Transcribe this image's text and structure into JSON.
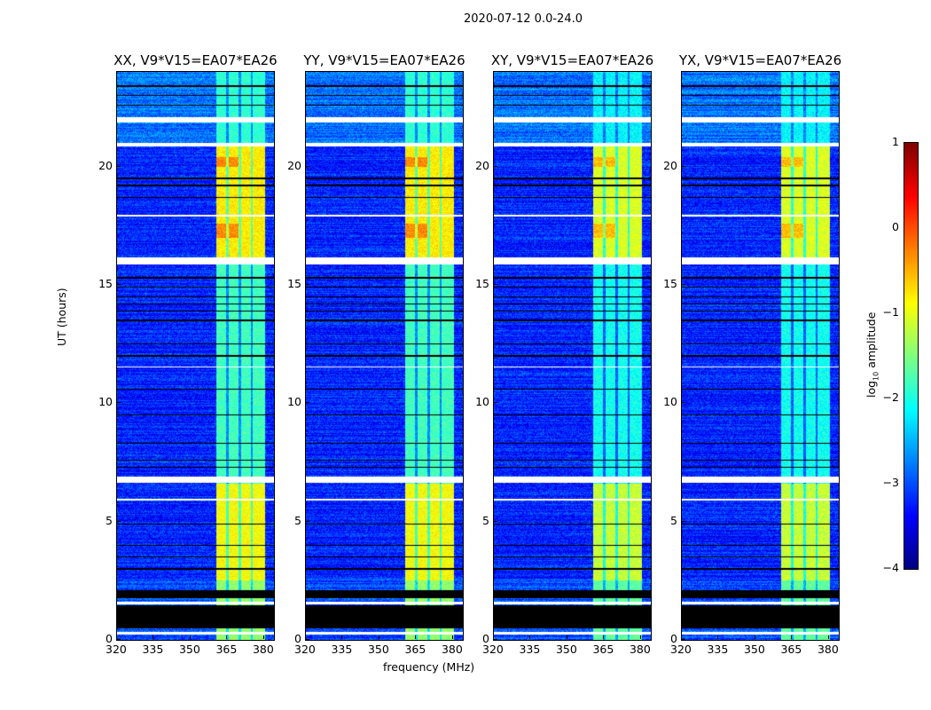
{
  "suptitle": "2020-07-12 0.0-24.0",
  "chart_data": {
    "type": "heatmap",
    "title": "2020-07-12 0.0-24.0",
    "xlabel": "frequency (MHz)",
    "ylabel": "UT (hours)",
    "xlim": [
      320,
      384
    ],
    "ylim": [
      0,
      24
    ],
    "xticks": [
      320,
      335,
      350,
      365,
      380
    ],
    "yticks": [
      0,
      5,
      10,
      15,
      20
    ],
    "panels": [
      {
        "title": "XX, V9*V15=EA07*EA26",
        "name": "XX"
      },
      {
        "title": "YY, V9*V15=EA07*EA26",
        "name": "YY"
      },
      {
        "title": "XY, V9*V15=EA07*EA26",
        "name": "XY"
      },
      {
        "title": "YX, V9*V15=EA07*EA26",
        "name": "YX"
      }
    ],
    "colorbar": {
      "label_main": "log",
      "label_sub": "10",
      "label_tail": " amplitude",
      "range": [
        -4,
        1
      ],
      "ticks": [
        1,
        0,
        -1,
        -2,
        -3,
        -4
      ],
      "colormap": "jet"
    },
    "background_log_amplitude": -3.2,
    "rfi_band_mhz": [
      360.5,
      380.5
    ],
    "rfi_band_gaps_mhz": [
      365,
      370,
      375
    ],
    "rfi_band_levels_by_ut": [
      {
        "ut": [
          0,
          2.5
        ],
        "level": -1.4
      },
      {
        "ut": [
          2.5,
          6.6
        ],
        "level": -0.9
      },
      {
        "ut": [
          6.6,
          16
        ],
        "level": -1.8
      },
      {
        "ut": [
          16,
          21
        ],
        "level": -0.8
      },
      {
        "ut": [
          21,
          24
        ],
        "level": -1.9
      }
    ],
    "flagged_ut_white": [
      [
        21.85,
        22.1
      ],
      [
        20.85,
        21.0
      ],
      [
        15.85,
        16.15
      ],
      [
        6.65,
        6.9
      ],
      [
        1.5,
        1.62
      ],
      [
        0.22,
        0.32
      ],
      [
        11.5,
        11.56
      ],
      [
        17.9,
        17.96
      ],
      [
        5.9,
        5.95
      ]
    ],
    "zero_ut_black": [
      [
        1.75,
        2.1
      ],
      [
        0.5,
        1.45
      ]
    ],
    "black_lines_ut": [
      23.4,
      23.0,
      22.6,
      19.5,
      19.2,
      18.7,
      15.3,
      14.9,
      14.5,
      14.2,
      13.9,
      13.5,
      12.5,
      12.0,
      10.6,
      9.5,
      8.3,
      7.6,
      7.3,
      4.9,
      4.0,
      3.5,
      3.0
    ]
  }
}
